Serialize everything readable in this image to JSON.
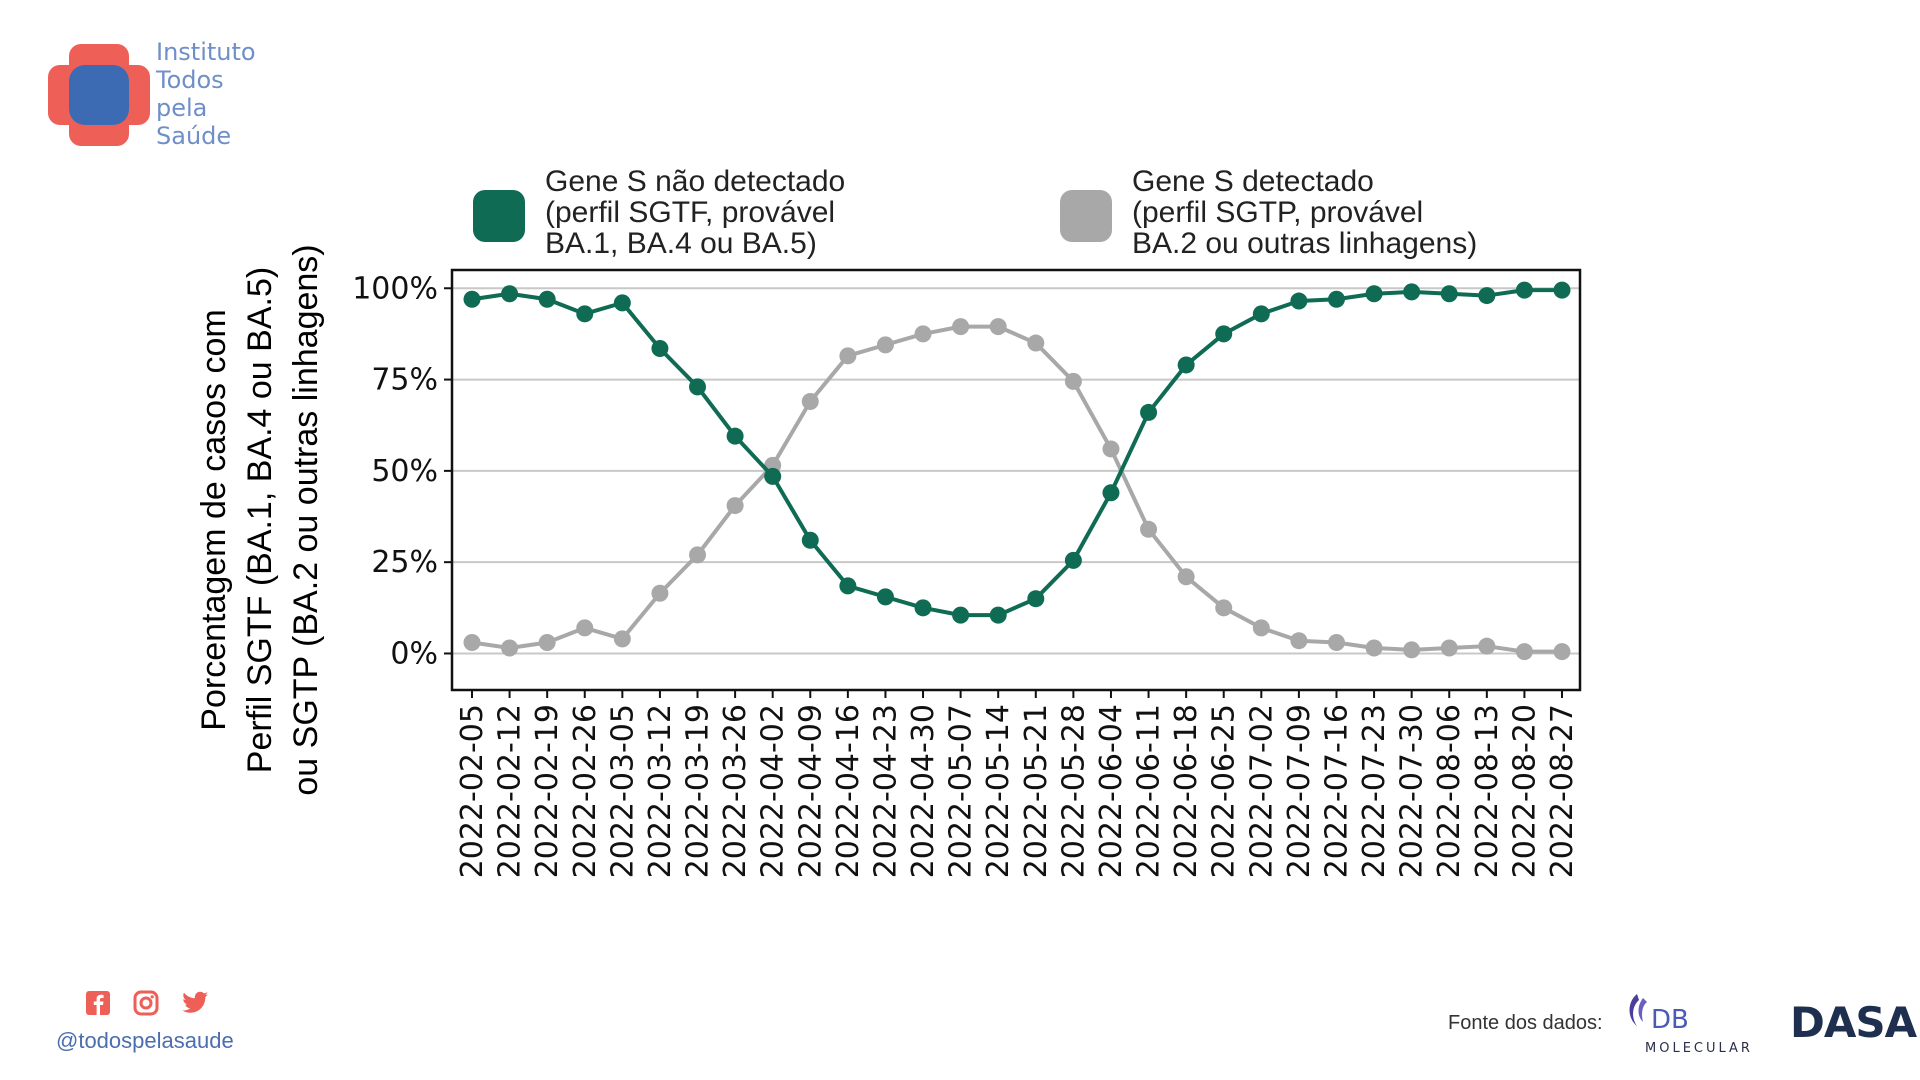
{
  "brand": {
    "logo_icon": "cross-plus-icon",
    "lines": [
      "Instituto",
      "Todos",
      "pela",
      "Saúde"
    ],
    "colors": {
      "cross": "#ee5f57",
      "center": "#3d6bb3",
      "text": "#6f8fc9"
    }
  },
  "footer": {
    "social_icons": [
      "facebook-icon",
      "instagram-icon",
      "twitter-icon"
    ],
    "handle": "@todospelasaude",
    "source_label": "Fonte dos dados:",
    "source_logos": {
      "db_top": "DB",
      "db_bottom": "MOLECULAR",
      "dasa": "DASA"
    }
  },
  "chart_data": {
    "type": "line",
    "ylabel": [
      "Porcentagem de casos com",
      "Perfil SGTF (BA.1, BA.4 ou BA.5)",
      "ou SGTP (BA.2 ou outras linhagens)"
    ],
    "xlabel": "",
    "ylim": [
      -10,
      105
    ],
    "yticks": [
      0,
      25,
      50,
      75,
      100
    ],
    "ytick_labels": [
      "0%",
      "25%",
      "50%",
      "75%",
      "100%"
    ],
    "grid": "horizontal",
    "legend_position": "top",
    "x": [
      "2022-02-05",
      "2022-02-12",
      "2022-02-19",
      "2022-02-26",
      "2022-03-05",
      "2022-03-12",
      "2022-03-19",
      "2022-03-26",
      "2022-04-02",
      "2022-04-09",
      "2022-04-16",
      "2022-04-23",
      "2022-04-30",
      "2022-05-07",
      "2022-05-14",
      "2022-05-21",
      "2022-05-28",
      "2022-06-04",
      "2022-06-11",
      "2022-06-18",
      "2022-06-25",
      "2022-07-02",
      "2022-07-09",
      "2022-07-16",
      "2022-07-23",
      "2022-07-30",
      "2022-08-06",
      "2022-08-13",
      "2022-08-20",
      "2022-08-27"
    ],
    "series": [
      {
        "name": [
          "Gene S não detectado",
          "(perfil SGTF, provável",
          "BA.1, BA.4 ou BA.5)"
        ],
        "color": "#0f6b53",
        "values": [
          97,
          98.5,
          97,
          93,
          96,
          83.5,
          73,
          59.5,
          48.5,
          31,
          18.5,
          15.5,
          12.5,
          10.5,
          10.5,
          15,
          25.5,
          44,
          66,
          79,
          87.5,
          93,
          96.5,
          97,
          98.5,
          99,
          98.5,
          98,
          99.5,
          99.5
        ]
      },
      {
        "name": [
          "Gene S detectado",
          "(perfil SGTP, provável",
          "BA.2 ou outras linhagens)"
        ],
        "color": "#a8a8a8",
        "values": [
          3,
          1.5,
          3,
          7,
          4,
          16.5,
          27,
          40.5,
          51.5,
          69,
          81.5,
          84.5,
          87.5,
          89.5,
          89.5,
          85,
          74.5,
          56,
          34,
          21,
          12.5,
          7,
          3.5,
          3,
          1.5,
          1,
          1.5,
          2,
          0.5,
          0.5
        ]
      }
    ]
  }
}
